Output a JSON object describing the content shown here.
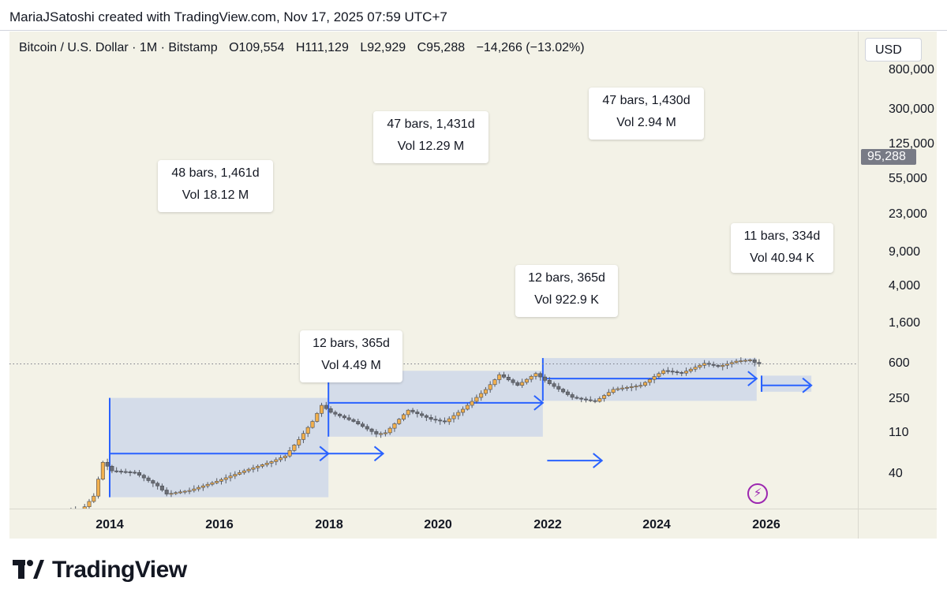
{
  "header": {
    "attribution": "MariaJSatoshi created with TradingView.com, Nov 17, 2025 07:59 UTC+7"
  },
  "legend": {
    "symbol": "Bitcoin / U.S. Dollar · 1M · Bitstamp",
    "open_label": "O",
    "open": "109,554",
    "high_label": "H",
    "high": "111,129",
    "low_label": "L",
    "low": "92,929",
    "close_label": "C",
    "close": "95,288",
    "change": "−14,266 (−13.02%)"
  },
  "price_scale": {
    "currency": "USD",
    "ticks": [
      "800,000",
      "300,000",
      "125,000",
      "55,000",
      "23,000",
      "9,000",
      "4,000",
      "1,600",
      "600",
      "250",
      "110",
      "40"
    ],
    "last_price": "95,288"
  },
  "time_axis": {
    "years": [
      "2014",
      "2016",
      "2018",
      "2020",
      "2022",
      "2024",
      "2026"
    ]
  },
  "annotations": [
    {
      "line1": "48 bars, 1,461d",
      "line2": "Vol 18.12 M"
    },
    {
      "line1": "12 bars, 365d",
      "line2": "Vol 4.49 M"
    },
    {
      "line1": "47 bars, 1,431d",
      "line2": "Vol 12.29 M"
    },
    {
      "line1": "12 bars, 365d",
      "line2": "Vol 922.9 K"
    },
    {
      "line1": "47 bars, 1,430d",
      "line2": "Vol 2.94 M"
    },
    {
      "line1": "11 bars, 334d",
      "line2": "Vol 40.94 K"
    }
  ],
  "footer": {
    "brand": "TradingView"
  },
  "colors": {
    "background": "#f3f2e7",
    "range_fill": "#c9d4ea",
    "range_line": "#2962ff",
    "candle_up": "#f2b04d",
    "candle_down": "#6b6e75",
    "flash": "#9c27b0"
  },
  "chart_data": {
    "type": "candlestick",
    "title": "Bitcoin / U.S. Dollar · 1M · Bitstamp",
    "scale": "log",
    "ylim": [
      25,
      800000
    ],
    "xlim": [
      2013.0,
      2027.0
    ],
    "ohlc_last": {
      "open": 109554,
      "high": 111129,
      "low": 92929,
      "close": 95288
    },
    "anchors": [
      [
        2013.0,
        14
      ],
      [
        2013.33,
        110
      ],
      [
        2013.5,
        95
      ],
      [
        2013.75,
        200
      ],
      [
        2013.92,
        1000
      ],
      [
        2014.08,
        650
      ],
      [
        2014.5,
        600
      ],
      [
        2014.92,
        320
      ],
      [
        2015.08,
        220
      ],
      [
        2015.5,
        260
      ],
      [
        2016.0,
        400
      ],
      [
        2016.5,
        650
      ],
      [
        2017.0,
        1000
      ],
      [
        2017.25,
        1300
      ],
      [
        2017.5,
        2800
      ],
      [
        2017.75,
        6500
      ],
      [
        2017.92,
        14000
      ],
      [
        2018.08,
        10000
      ],
      [
        2018.5,
        6500
      ],
      [
        2018.92,
        3600
      ],
      [
        2019.08,
        3800
      ],
      [
        2019.5,
        11000
      ],
      [
        2019.92,
        7200
      ],
      [
        2020.17,
        6400
      ],
      [
        2020.5,
        11500
      ],
      [
        2020.92,
        29000
      ],
      [
        2021.17,
        58000
      ],
      [
        2021.5,
        35000
      ],
      [
        2021.83,
        61000
      ],
      [
        2022.08,
        38000
      ],
      [
        2022.5,
        20000
      ],
      [
        2022.92,
        16500
      ],
      [
        2023.25,
        29000
      ],
      [
        2023.75,
        35000
      ],
      [
        2024.17,
        70000
      ],
      [
        2024.5,
        62000
      ],
      [
        2024.92,
        98000
      ],
      [
        2025.17,
        84000
      ],
      [
        2025.5,
        108000
      ],
      [
        2025.75,
        115000
      ],
      [
        2025.88,
        95288
      ]
    ],
    "ranges": [
      {
        "x0": 2014.0,
        "x1": 2018.0,
        "y0": 190,
        "y1": 19500,
        "arrow_y": 1450,
        "note": "48 bars, 1,461d / Vol 18.12 M"
      },
      {
        "x0": 2018.0,
        "x1": 2019.0,
        "y0": 1450,
        "y1": 1450,
        "arrow_only": true,
        "note": "12 bars, 365d / Vol 4.49 M"
      },
      {
        "x0": 2018.0,
        "x1": 2021.92,
        "y0": 3200,
        "y1": 69000,
        "arrow_y": 15500,
        "note": "47 bars, 1,431d / Vol 12.29 M"
      },
      {
        "x0": 2022.0,
        "x1": 2023.0,
        "y0": 1050,
        "y1": 1050,
        "arrow_only": true,
        "note": "12 bars, 365d / Vol 922.9 K"
      },
      {
        "x0": 2021.92,
        "x1": 2025.83,
        "y0": 17000,
        "y1": 125000,
        "arrow_y": 48000,
        "note": "47 bars, 1,430d / Vol 2.94 M"
      },
      {
        "x0": 2025.92,
        "x1": 2026.83,
        "y0": 26000,
        "y1": 55000,
        "arrow_y": 35000,
        "note": "11 bars, 334d / Vol 40.94 K"
      }
    ]
  }
}
